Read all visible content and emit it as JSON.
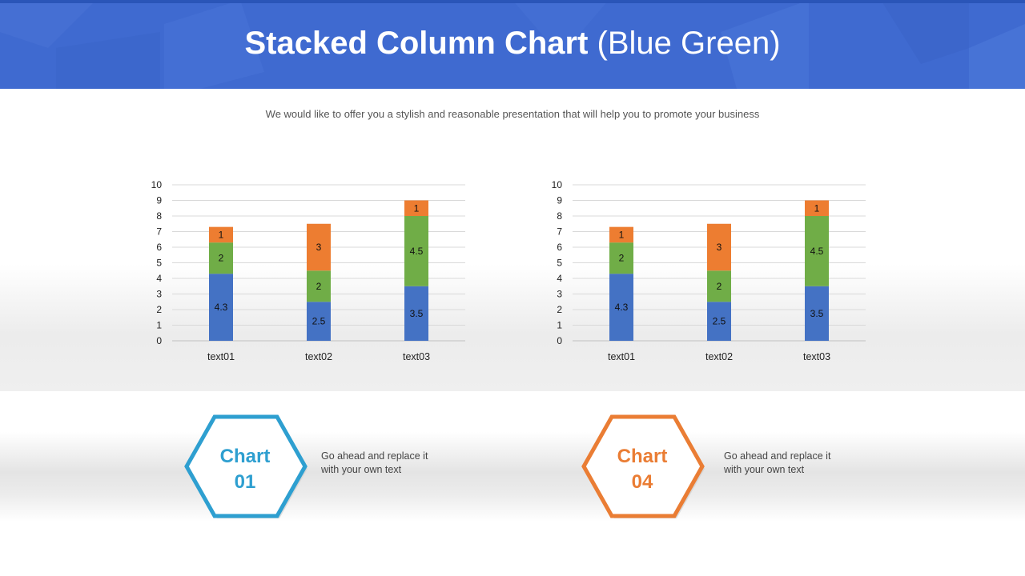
{
  "header": {
    "title_bold": "Stacked Column Chart",
    "title_rest": "(Blue Green)"
  },
  "subtitle": "We would like to offer you a stylish and reasonable presentation that will help you to promote your business",
  "colors": {
    "header_bg": "#3f6ad0",
    "series_blue": "#4472c4",
    "series_green": "#70ad47",
    "series_orange": "#ed7d31",
    "hex_blue": "#2e9fd0",
    "hex_orange": "#ea7d34"
  },
  "chart_data": [
    {
      "type": "bar",
      "stacked": true,
      "categories": [
        "text01",
        "text02",
        "text03"
      ],
      "series": [
        {
          "values": [
            4.3,
            2.5,
            3.5
          ],
          "color": "#4472c4"
        },
        {
          "values": [
            2,
            2,
            4.5
          ],
          "color": "#70ad47"
        },
        {
          "values": [
            1,
            3,
            1
          ],
          "color": "#ed7d31"
        }
      ],
      "ylim": [
        0,
        10
      ],
      "yticks": [
        0,
        1,
        2,
        3,
        4,
        5,
        6,
        7,
        8,
        9,
        10
      ],
      "grid": true,
      "data_labels": true
    },
    {
      "type": "bar",
      "stacked": true,
      "categories": [
        "text01",
        "text02",
        "text03"
      ],
      "series": [
        {
          "values": [
            4.3,
            2.5,
            3.5
          ],
          "color": "#4472c4"
        },
        {
          "values": [
            2,
            2,
            4.5
          ],
          "color": "#70ad47"
        },
        {
          "values": [
            1,
            3,
            1
          ],
          "color": "#ed7d31"
        }
      ],
      "ylim": [
        0,
        10
      ],
      "yticks": [
        0,
        1,
        2,
        3,
        4,
        5,
        6,
        7,
        8,
        9,
        10
      ],
      "grid": true,
      "data_labels": true
    }
  ],
  "cards": [
    {
      "line1": "Chart",
      "line2": "01",
      "color": "#2e9fd0",
      "text": "Go ahead and replace it\nwith  your own text"
    },
    {
      "line1": "Chart",
      "line2": "04",
      "color": "#ea7d34",
      "text": "Go ahead and replace it\nwith  your own text"
    }
  ]
}
